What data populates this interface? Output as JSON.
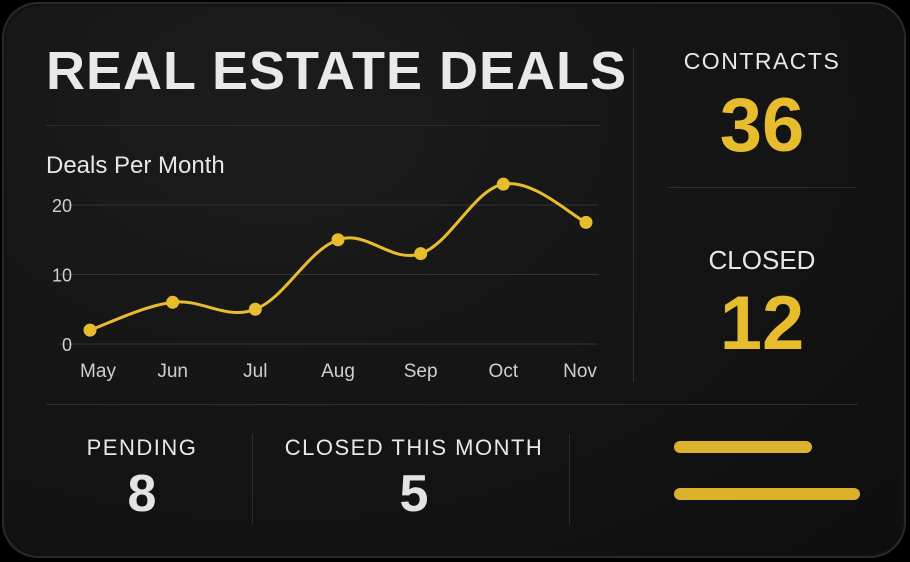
{
  "dashboard": {
    "title": "REAL ESTATE DEALS",
    "contracts": {
      "label": "CONTRACTS",
      "value": "36"
    },
    "closed": {
      "label": "CLOSED",
      "value": "12"
    },
    "pending": {
      "label": "PENDING",
      "value": "8"
    },
    "closed_this_month": {
      "label": "CLOSED THIS MONTH",
      "value": "5"
    }
  },
  "colors": {
    "accent": "#e7bd2d",
    "background": "#141414",
    "text": "#ececec",
    "grid": "#333333"
  },
  "chart_data": {
    "type": "line",
    "title": "Deals Per Month",
    "categories": [
      "May",
      "Jun",
      "Jul",
      "Aug",
      "Sep",
      "Oct",
      "Nov"
    ],
    "values": [
      2,
      6,
      5,
      15,
      13,
      23,
      17.5
    ],
    "yticks": [
      0,
      10,
      20
    ],
    "ylim": [
      0,
      20
    ],
    "grid": true,
    "legend": "none",
    "xlabel": "",
    "ylabel": ""
  }
}
